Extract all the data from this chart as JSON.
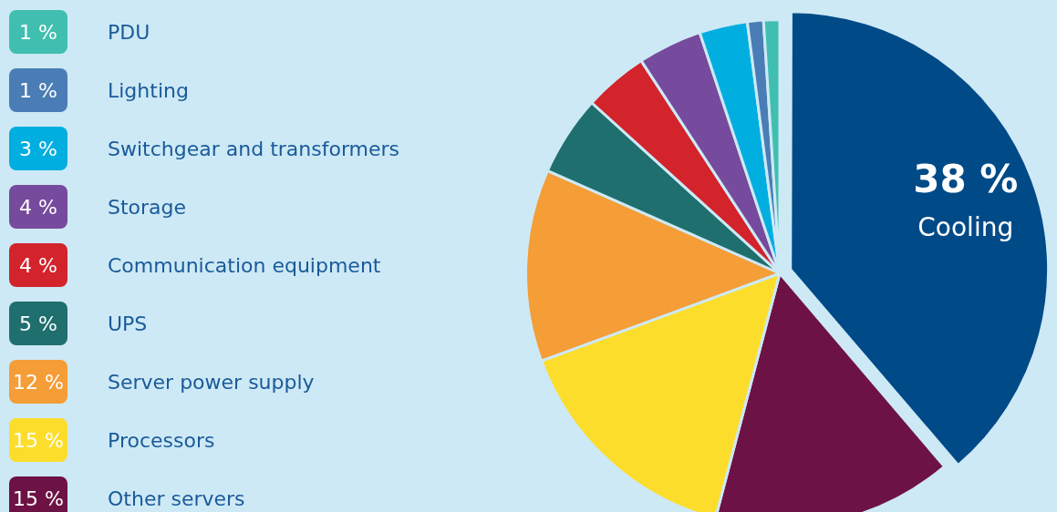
{
  "chart_data": {
    "type": "pie",
    "categories": [
      "Cooling",
      "Other servers",
      "Processors",
      "Server power supply",
      "UPS",
      "Communication equipment",
      "Storage",
      "Switchgear and transformers",
      "Lighting",
      "PDU"
    ],
    "values": [
      38,
      15,
      15,
      12,
      5,
      4,
      4,
      3,
      1,
      1
    ],
    "value_labels": [
      "38 %",
      "15 %",
      "15 %",
      "12 %",
      "5 %",
      "4 %",
      "4 %",
      "3 %",
      "1 %",
      "1 %"
    ],
    "colors": [
      "#004a87",
      "#6d1244",
      "#fddd2c",
      "#f59d36",
      "#1f6f6e",
      "#d3232b",
      "#764a9c",
      "#00aee0",
      "#4a7db5",
      "#40bfb0"
    ],
    "legend": "left"
  }
}
